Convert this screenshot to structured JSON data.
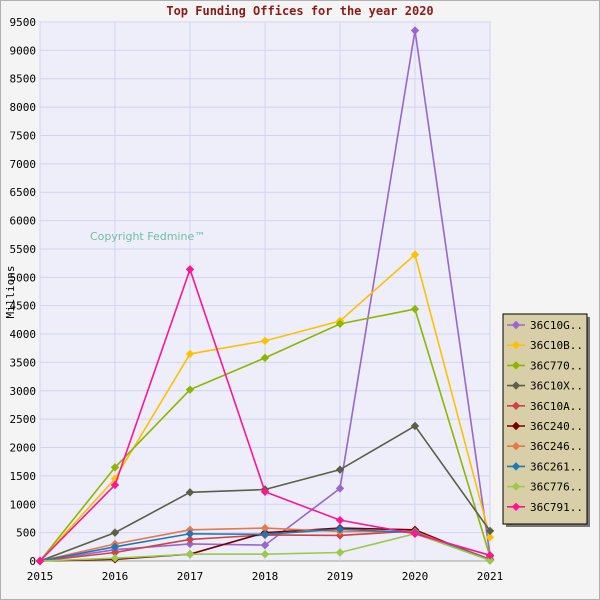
{
  "chart_data": {
    "type": "line",
    "title": "Top Funding Offices for the year 2020",
    "ylabel": "Millions",
    "xlabel": "",
    "watermark": "Copyright Fedmine™",
    "x": [
      2015,
      2016,
      2017,
      2018,
      2019,
      2020,
      2021
    ],
    "xlim": [
      2015,
      2021
    ],
    "ylim": [
      0,
      9500
    ],
    "yticks": [
      0,
      500,
      1000,
      1500,
      2000,
      2500,
      3000,
      3500,
      4000,
      4500,
      5000,
      5500,
      6000,
      6500,
      7000,
      7500,
      8000,
      8500,
      9000,
      9500
    ],
    "grid": true,
    "legend_position": "right",
    "series": [
      {
        "name": "36C10G..",
        "color": "#9966cc",
        "marker": "diamond",
        "values": [
          0,
          200,
          300,
          280,
          1280,
          9350,
          100
        ]
      },
      {
        "name": "36C10B..",
        "color": "#ffc000",
        "marker": "diamond",
        "values": [
          0,
          1450,
          3650,
          3880,
          4230,
          5400,
          420
        ]
      },
      {
        "name": "36C770..",
        "color": "#8db600",
        "marker": "diamond",
        "values": [
          0,
          1650,
          3020,
          3580,
          4180,
          4440,
          80
        ]
      },
      {
        "name": "36C10X..",
        "color": "#5a5f45",
        "marker": "diamond",
        "values": [
          0,
          500,
          1210,
          1260,
          1610,
          2380,
          530
        ]
      },
      {
        "name": "36C10A..",
        "color": "#cc4444",
        "marker": "diamond",
        "values": [
          0,
          150,
          380,
          460,
          450,
          530,
          30
        ]
      },
      {
        "name": "36C240..",
        "color": "#7a0000",
        "marker": "diamond",
        "values": [
          0,
          30,
          120,
          500,
          580,
          550,
          10
        ]
      },
      {
        "name": "36C246..",
        "color": "#e8784a",
        "marker": "diamond",
        "values": [
          0,
          300,
          550,
          580,
          520,
          520,
          20
        ]
      },
      {
        "name": "36C261..",
        "color": "#1f77b4",
        "marker": "diamond",
        "values": [
          0,
          250,
          480,
          470,
          560,
          500,
          20
        ]
      },
      {
        "name": "36C776..",
        "color": "#99cc44",
        "marker": "diamond",
        "values": [
          0,
          50,
          120,
          120,
          150,
          480,
          10
        ]
      },
      {
        "name": "36C791..",
        "color": "#ff1493",
        "marker": "diamond",
        "values": [
          0,
          1340,
          5140,
          1220,
          720,
          480,
          100
        ]
      }
    ]
  }
}
